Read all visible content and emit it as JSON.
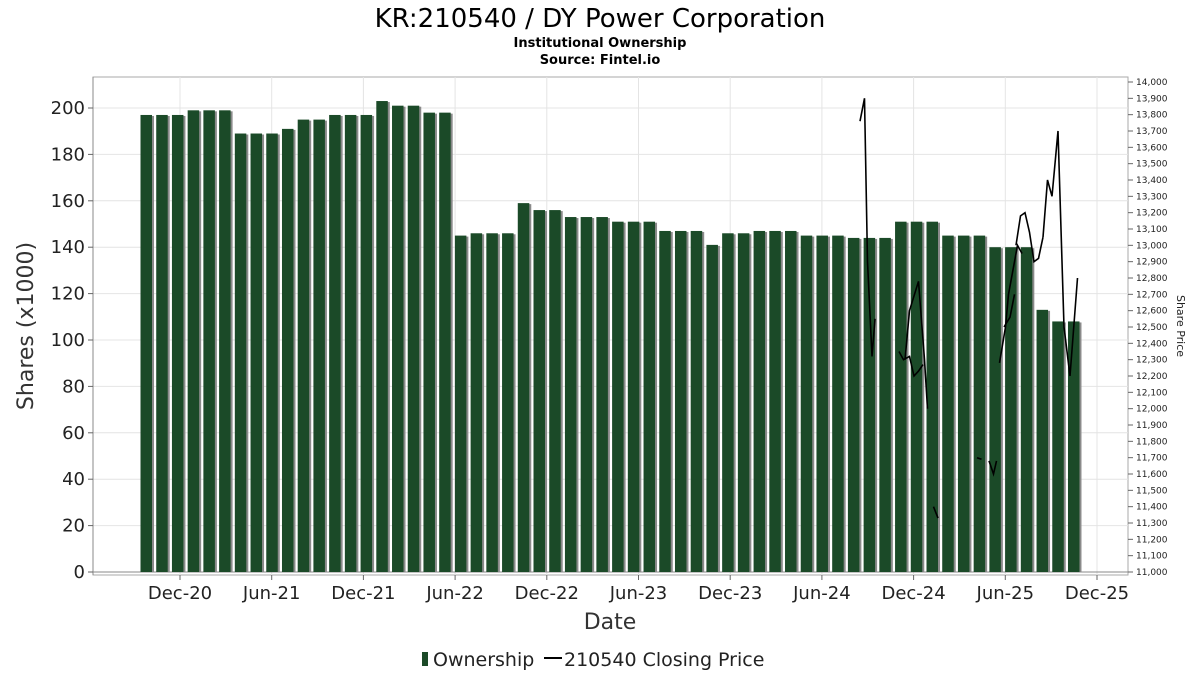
{
  "chart_data": {
    "type": "bar",
    "title": "KR:210540 / DY Power Corporation",
    "subtitle": "Institutional Ownership",
    "source": "Source: Fintel.io",
    "xlabel": "Date",
    "ylabel": "Shares (x1000)",
    "ylabel_right": "Share Price",
    "ylim": [
      0,
      210
    ],
    "ylim_right": [
      11000,
      14000
    ],
    "yticks": [
      0,
      20,
      40,
      60,
      80,
      100,
      120,
      140,
      160,
      180,
      200
    ],
    "yticks_right": [
      11000,
      11100,
      11200,
      11300,
      11400,
      11500,
      11600,
      11700,
      11800,
      11900,
      12000,
      12100,
      12200,
      12300,
      12400,
      12500,
      12600,
      12700,
      12800,
      12900,
      13000,
      13100,
      13200,
      13300,
      13400,
      13500,
      13600,
      13700,
      13800,
      13900,
      14000
    ],
    "yticks_right_labels": [
      "11,000",
      "11,100",
      "11,200",
      "11,300",
      "11,400",
      "11,500",
      "11,600",
      "11,700",
      "11,800",
      "11,900",
      "12,000",
      "12,100",
      "12,200",
      "12,300",
      "12,400",
      "12,500",
      "12,600",
      "12,700",
      "12,800",
      "12,900",
      "13,000",
      "13,100",
      "13,200",
      "13,300",
      "13,400",
      "13,500",
      "13,600",
      "13,700",
      "13,800",
      "13,900",
      "14,000"
    ],
    "xticks": [
      "Dec-20",
      "Jun-21",
      "Dec-21",
      "Jun-22",
      "Dec-22",
      "Jun-23",
      "Dec-23",
      "Jun-24",
      "Dec-24",
      "Jun-25",
      "Dec-25"
    ],
    "grid": true,
    "legend_position": "bottom",
    "series": [
      {
        "name": "Ownership",
        "kind": "bar",
        "color": "#1b4a28",
        "values": [
          197,
          197,
          197,
          199,
          199,
          199,
          189,
          189,
          189,
          191,
          195,
          195,
          197,
          197,
          197,
          203,
          201,
          201,
          198,
          198,
          145,
          146,
          146,
          146,
          159,
          156,
          156,
          153,
          153,
          153,
          151,
          151,
          151,
          147,
          147,
          147,
          141,
          146,
          146,
          147,
          147,
          147,
          145,
          145,
          145,
          144,
          144,
          144,
          151,
          151,
          151,
          145,
          145,
          145,
          140,
          140,
          140,
          113,
          108,
          108
        ]
      },
      {
        "name": "210540 Closing Price",
        "kind": "line",
        "color": "#000000",
        "segments": [
          [
            [
              0.0,
              13760
            ],
            [
              0.3,
              13900
            ],
            [
              0.5,
              12900
            ],
            [
              0.8,
              12320
            ],
            [
              1.0,
              12550
            ]
          ],
          [
            [
              2.6,
              12350
            ],
            [
              2.9,
              12300
            ],
            [
              3.3,
              12320
            ],
            [
              3.6,
              12200
            ],
            [
              3.9,
              12230
            ],
            [
              4.2,
              12270
            ]
          ],
          [
            [
              3.0,
              12300
            ],
            [
              3.3,
              12600
            ],
            [
              3.9,
              12780
            ],
            [
              4.3,
              12300
            ],
            [
              4.5,
              12000
            ]
          ],
          [
            [
              4.9,
              11400
            ],
            [
              5.2,
              11330
            ]
          ],
          [
            [
              7.8,
              11700
            ],
            [
              8.1,
              11690
            ]
          ],
          [
            [
              8.6,
              11680
            ],
            [
              8.9,
              11600
            ],
            [
              9.1,
              11680
            ]
          ],
          [
            [
              9.6,
              12500
            ],
            [
              10.0,
              12560
            ],
            [
              10.3,
              12700
            ]
          ],
          [
            [
              9.3,
              12280
            ],
            [
              9.7,
              12500
            ],
            [
              9.9,
              12700
            ],
            [
              10.2,
              12850
            ],
            [
              10.5,
              13000
            ],
            [
              10.8,
              12950
            ]
          ],
          [
            [
              10.4,
              13000
            ],
            [
              10.7,
              13180
            ],
            [
              11.0,
              13200
            ],
            [
              11.3,
              13080
            ],
            [
              11.6,
              12900
            ],
            [
              11.9,
              12920
            ],
            [
              12.2,
              13050
            ]
          ],
          [
            [
              12.2,
              13050
            ],
            [
              12.5,
              13400
            ],
            [
              12.8,
              13300
            ],
            [
              13.2,
              13700
            ],
            [
              13.6,
              12500
            ],
            [
              14.0,
              12200
            ],
            [
              14.5,
              12800
            ]
          ]
        ]
      }
    ]
  },
  "legend": {
    "items": [
      {
        "label": "Ownership",
        "color": "#1b4a28",
        "icon": "bar-swatch"
      },
      {
        "label": "210540 Closing Price",
        "color": "#000000",
        "icon": "line-swatch"
      }
    ]
  }
}
